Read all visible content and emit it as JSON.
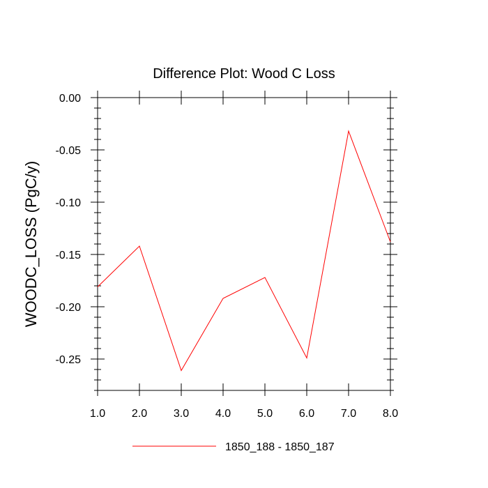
{
  "chart_data": {
    "type": "line",
    "title": "Difference Plot: Wood C Loss",
    "xlabel": "",
    "ylabel": "WOODC_LOSS  (PgC/y)",
    "xlim": [
      1.0,
      8.0
    ],
    "ylim": [
      -0.28,
      0.0
    ],
    "x_ticks": [
      "1.0",
      "2.0",
      "3.0",
      "4.0",
      "5.0",
      "6.0",
      "7.0",
      "8.0"
    ],
    "y_ticks": [
      "0.00",
      "-0.05",
      "-0.10",
      "-0.15",
      "-0.20",
      "-0.25"
    ],
    "x_tick_values": [
      1,
      2,
      3,
      4,
      5,
      6,
      7,
      8
    ],
    "y_tick_values": [
      0.0,
      -0.05,
      -0.1,
      -0.15,
      -0.2,
      -0.25
    ],
    "grid": false,
    "legend_position": "bottom-center",
    "series": [
      {
        "name": "1850_188 - 1850_187",
        "color": "#ff0000",
        "x": [
          1.0,
          2.0,
          3.0,
          4.0,
          5.0,
          6.0,
          7.0,
          8.0
        ],
        "y": [
          -0.181,
          -0.142,
          -0.261,
          -0.192,
          -0.172,
          -0.249,
          -0.032,
          -0.138
        ]
      }
    ]
  }
}
